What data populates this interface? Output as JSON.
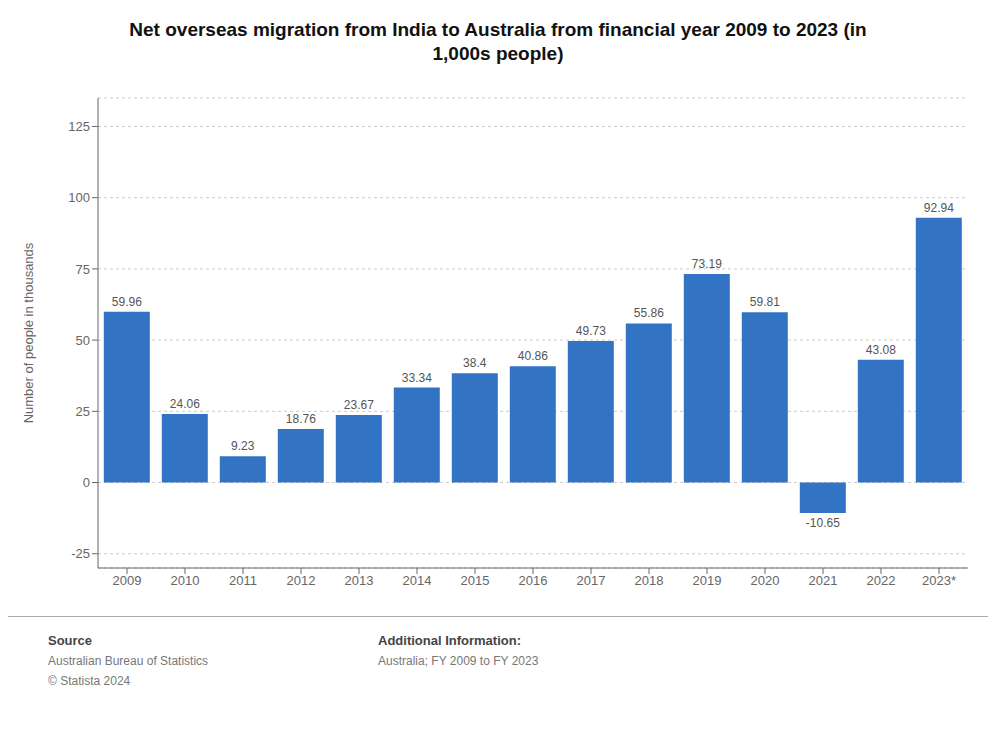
{
  "chart_data": {
    "type": "bar",
    "title": "Net overseas migration from India to Australia from financial year 2009 to 2023 (in\n1,000s people)",
    "categories": [
      "2009",
      "2010",
      "2011",
      "2012",
      "2013",
      "2014",
      "2015",
      "2016",
      "2017",
      "2018",
      "2019",
      "2020",
      "2021",
      "2022",
      "2023*"
    ],
    "values": [
      59.96,
      24.06,
      9.23,
      18.76,
      23.67,
      33.34,
      38.4,
      40.86,
      49.73,
      55.86,
      73.19,
      59.81,
      -10.65,
      43.08,
      92.94
    ],
    "color": "#3373C4",
    "ylabel": "Number of people in thousands",
    "ylim": [
      -30,
      135
    ],
    "yticks": [
      -25,
      0,
      25,
      50,
      75,
      100,
      125
    ],
    "grid": true,
    "data_labels": true,
    "annotations": [
      "Source",
      "Australian Bureau of Statistics",
      "© Statista 2024",
      "Additional Information:",
      "Australia; FY 2009 to FY 2023"
    ]
  }
}
